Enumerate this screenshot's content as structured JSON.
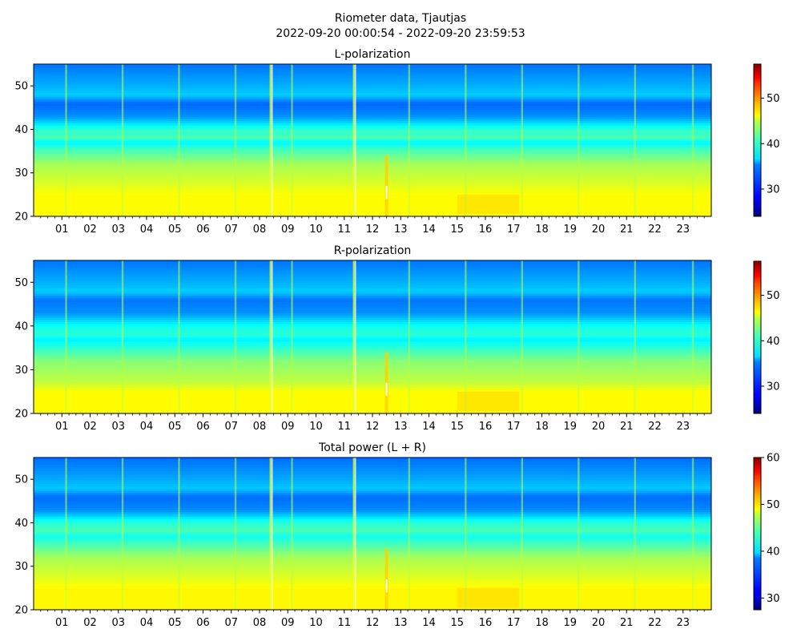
{
  "figure": {
    "title_line1": "Riometer data, Tjautjas",
    "title_line2": "2022-09-20 00:00:54 - 2022-09-20 23:59:53"
  },
  "chart_data": [
    {
      "type": "heatmap",
      "title": "L-polarization",
      "xlabel": "",
      "ylabel": "",
      "x_tick_labels": [
        "01",
        "02",
        "03",
        "04",
        "05",
        "06",
        "07",
        "08",
        "09",
        "10",
        "11",
        "12",
        "13",
        "14",
        "15",
        "16",
        "17",
        "18",
        "19",
        "20",
        "21",
        "22",
        "23"
      ],
      "x_range_hours": [
        0,
        24
      ],
      "y_tick_labels": [
        "20",
        "30",
        "40",
        "50"
      ],
      "ylim": [
        20,
        55
      ],
      "colorbar": {
        "ticks": [
          "30",
          "40",
          "50"
        ],
        "range": [
          24,
          57.5
        ],
        "colormap": "jet"
      },
      "value_profile_by_y": [
        [
          20,
          45
        ],
        [
          25,
          45
        ],
        [
          27,
          44
        ],
        [
          32,
          42
        ],
        [
          36,
          38
        ],
        [
          37,
          36
        ],
        [
          38,
          39
        ],
        [
          40,
          38
        ],
        [
          43,
          33
        ],
        [
          46,
          31.5
        ],
        [
          48,
          35
        ],
        [
          50,
          34
        ],
        [
          55,
          32
        ]
      ]
    },
    {
      "type": "heatmap",
      "title": "R-polarization",
      "xlabel": "",
      "ylabel": "",
      "x_tick_labels": [
        "01",
        "02",
        "03",
        "04",
        "05",
        "06",
        "07",
        "08",
        "09",
        "10",
        "11",
        "12",
        "13",
        "14",
        "15",
        "16",
        "17",
        "18",
        "19",
        "20",
        "21",
        "22",
        "23"
      ],
      "x_range_hours": [
        0,
        24
      ],
      "y_tick_labels": [
        "20",
        "30",
        "40",
        "50"
      ],
      "ylim": [
        20,
        55
      ],
      "colorbar": {
        "ticks": [
          "30",
          "40",
          "50"
        ],
        "range": [
          24,
          57.5
        ],
        "colormap": "jet"
      },
      "value_profile_by_y": [
        [
          20,
          45
        ],
        [
          25,
          45
        ],
        [
          27,
          43
        ],
        [
          32,
          41
        ],
        [
          36,
          37
        ],
        [
          37,
          36
        ],
        [
          38,
          38
        ],
        [
          40,
          37
        ],
        [
          43,
          33
        ],
        [
          46,
          32
        ],
        [
          48,
          35
        ],
        [
          50,
          34
        ],
        [
          55,
          32
        ]
      ]
    },
    {
      "type": "heatmap",
      "title": "Total power (L + R)",
      "xlabel": "",
      "ylabel": "",
      "x_tick_labels": [
        "01",
        "02",
        "03",
        "04",
        "05",
        "06",
        "07",
        "08",
        "09",
        "10",
        "11",
        "12",
        "13",
        "14",
        "15",
        "16",
        "17",
        "18",
        "19",
        "20",
        "21",
        "22",
        "23"
      ],
      "x_range_hours": [
        0,
        24
      ],
      "y_tick_labels": [
        "20",
        "30",
        "40",
        "50"
      ],
      "ylim": [
        20,
        55
      ],
      "colorbar": {
        "ticks": [
          "30",
          "40",
          "50",
          "60"
        ],
        "range": [
          27.5,
          60
        ],
        "colormap": "jet"
      },
      "value_profile_by_y": [
        [
          20,
          48
        ],
        [
          25,
          48
        ],
        [
          27,
          47
        ],
        [
          32,
          45
        ],
        [
          36,
          41
        ],
        [
          37,
          40
        ],
        [
          38,
          42
        ],
        [
          40,
          41
        ],
        [
          43,
          36
        ],
        [
          46,
          35
        ],
        [
          48,
          38
        ],
        [
          50,
          37
        ],
        [
          55,
          35
        ]
      ]
    }
  ]
}
